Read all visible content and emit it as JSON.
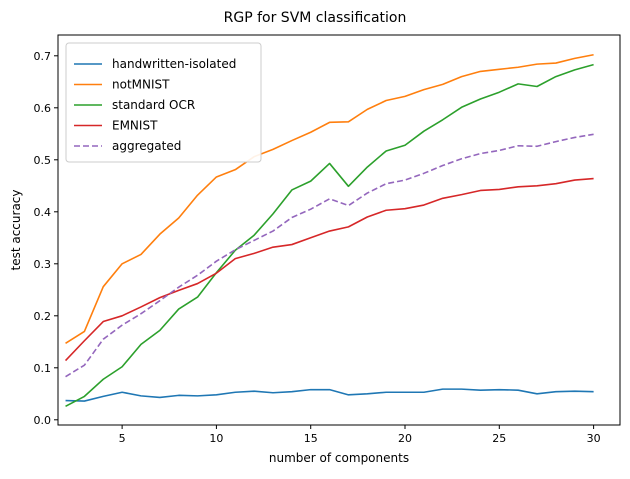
{
  "chart_data": {
    "type": "line",
    "title": "RGP for SVM classification",
    "xlabel": "number of components",
    "ylabel": "test accuracy",
    "xlim": [
      1.6,
      31.4
    ],
    "ylim": [
      -0.01,
      0.74
    ],
    "xticks": [
      5,
      10,
      15,
      20,
      25,
      30
    ],
    "yticks": [
      0.0,
      0.1,
      0.2,
      0.3,
      0.4,
      0.5,
      0.6,
      0.7
    ],
    "grid": false,
    "legend_position": "upper-left",
    "x": [
      2,
      3,
      4,
      5,
      6,
      7,
      8,
      9,
      10,
      11,
      12,
      13,
      14,
      15,
      16,
      17,
      18,
      19,
      20,
      21,
      22,
      23,
      24,
      25,
      26,
      27,
      28,
      29,
      30
    ],
    "series": [
      {
        "name": "handwritten-isolated",
        "color": "#1f77b4",
        "dashed": false,
        "values": [
          0.037,
          0.036,
          0.045,
          0.053,
          0.046,
          0.043,
          0.047,
          0.046,
          0.048,
          0.053,
          0.055,
          0.052,
          0.054,
          0.058,
          0.058,
          0.048,
          0.05,
          0.053,
          0.053,
          0.053,
          0.059,
          0.059,
          0.057,
          0.058,
          0.057,
          0.05,
          0.054,
          0.055,
          0.054
        ]
      },
      {
        "name": "notMNIST",
        "color": "#ff7f0e",
        "dashed": false,
        "values": [
          0.147,
          0.17,
          0.256,
          0.3,
          0.318,
          0.357,
          0.388,
          0.432,
          0.467,
          0.481,
          0.506,
          0.52,
          0.537,
          0.553,
          0.572,
          0.573,
          0.597,
          0.614,
          0.622,
          0.635,
          0.645,
          0.66,
          0.67,
          0.674,
          0.678,
          0.684,
          0.686,
          0.695,
          0.702
        ]
      },
      {
        "name": "standard OCR",
        "color": "#2ca02c",
        "dashed": false,
        "values": [
          0.026,
          0.045,
          0.078,
          0.102,
          0.145,
          0.172,
          0.213,
          0.236,
          0.283,
          0.326,
          0.355,
          0.396,
          0.442,
          0.459,
          0.493,
          0.449,
          0.486,
          0.517,
          0.528,
          0.555,
          0.577,
          0.601,
          0.617,
          0.63,
          0.646,
          0.641,
          0.66,
          0.673,
          0.683
        ]
      },
      {
        "name": "EMNIST",
        "color": "#d62728",
        "dashed": false,
        "values": [
          0.114,
          0.152,
          0.189,
          0.2,
          0.217,
          0.235,
          0.249,
          0.262,
          0.282,
          0.31,
          0.32,
          0.332,
          0.337,
          0.35,
          0.363,
          0.371,
          0.39,
          0.403,
          0.406,
          0.413,
          0.426,
          0.433,
          0.441,
          0.443,
          0.448,
          0.45,
          0.454,
          0.461,
          0.464
        ]
      },
      {
        "name": "aggregated",
        "color": "#9467bd",
        "dashed": true,
        "values": [
          0.083,
          0.105,
          0.155,
          0.182,
          0.204,
          0.229,
          0.255,
          0.278,
          0.305,
          0.327,
          0.345,
          0.363,
          0.389,
          0.405,
          0.425,
          0.412,
          0.436,
          0.454,
          0.461,
          0.474,
          0.489,
          0.502,
          0.512,
          0.518,
          0.527,
          0.526,
          0.535,
          0.543,
          0.549
        ]
      }
    ]
  }
}
